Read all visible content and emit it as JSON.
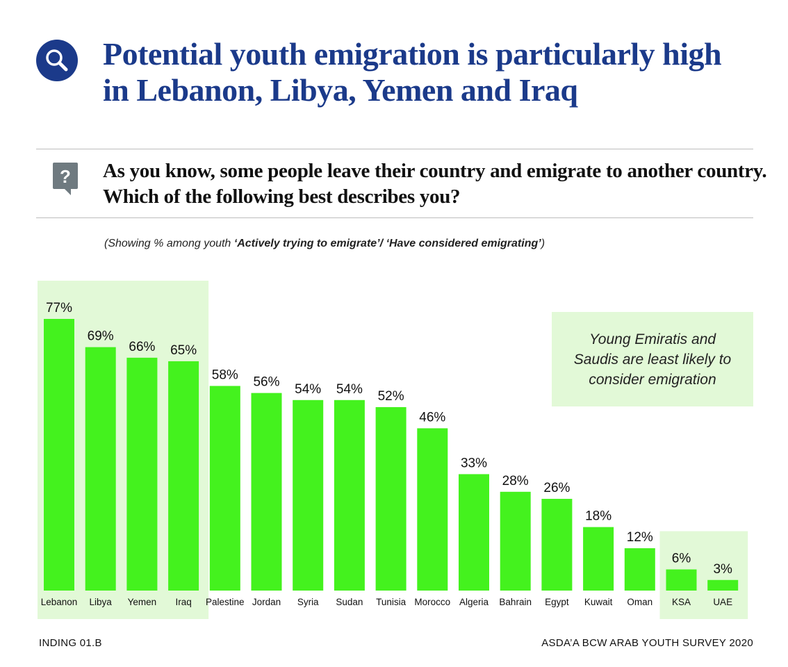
{
  "header": {
    "title": "Potential youth emigration is particularly high in Lebanon, Libya, Yemen and Iraq",
    "search_icon": "search-icon"
  },
  "question": {
    "text": "As you know, some people leave their country and emigrate to another country. Which of the following best describes you?",
    "icon": "question-bubble-icon"
  },
  "note": {
    "prefix": "(Showing % among youth ",
    "emphasis": "‘Actively trying to emigrate’/ ‘Have considered emigrating’",
    "suffix": ")"
  },
  "callout": {
    "text": "Young Emiratis and Saudis are least likely to consider emigration"
  },
  "footer": {
    "left": "INDING 01.B",
    "right": "ASDA’A BCW ARAB YOUTH SURVEY 2020"
  },
  "chart_data": {
    "type": "bar",
    "categories": [
      "Lebanon",
      "Libya",
      "Yemen",
      "Iraq",
      "Palestine",
      "Jordan",
      "Syria",
      "Sudan",
      "Tunisia",
      "Morocco",
      "Algeria",
      "Bahrain",
      "Egypt",
      "Kuwait",
      "Oman",
      "KSA",
      "UAE"
    ],
    "values": [
      77,
      69,
      66,
      65,
      58,
      56,
      54,
      54,
      52,
      46,
      33,
      28,
      26,
      18,
      12,
      6,
      3
    ],
    "value_suffix": "%",
    "ylim": [
      0,
      77
    ],
    "bar_color": "#44f21e",
    "highlight_color": "#e2f9d7",
    "highlight_groups": [
      {
        "categories": [
          "Lebanon",
          "Libya",
          "Yemen",
          "Iraq"
        ]
      },
      {
        "categories": [
          "KSA",
          "UAE"
        ]
      }
    ],
    "grid": false,
    "legend": "none"
  }
}
